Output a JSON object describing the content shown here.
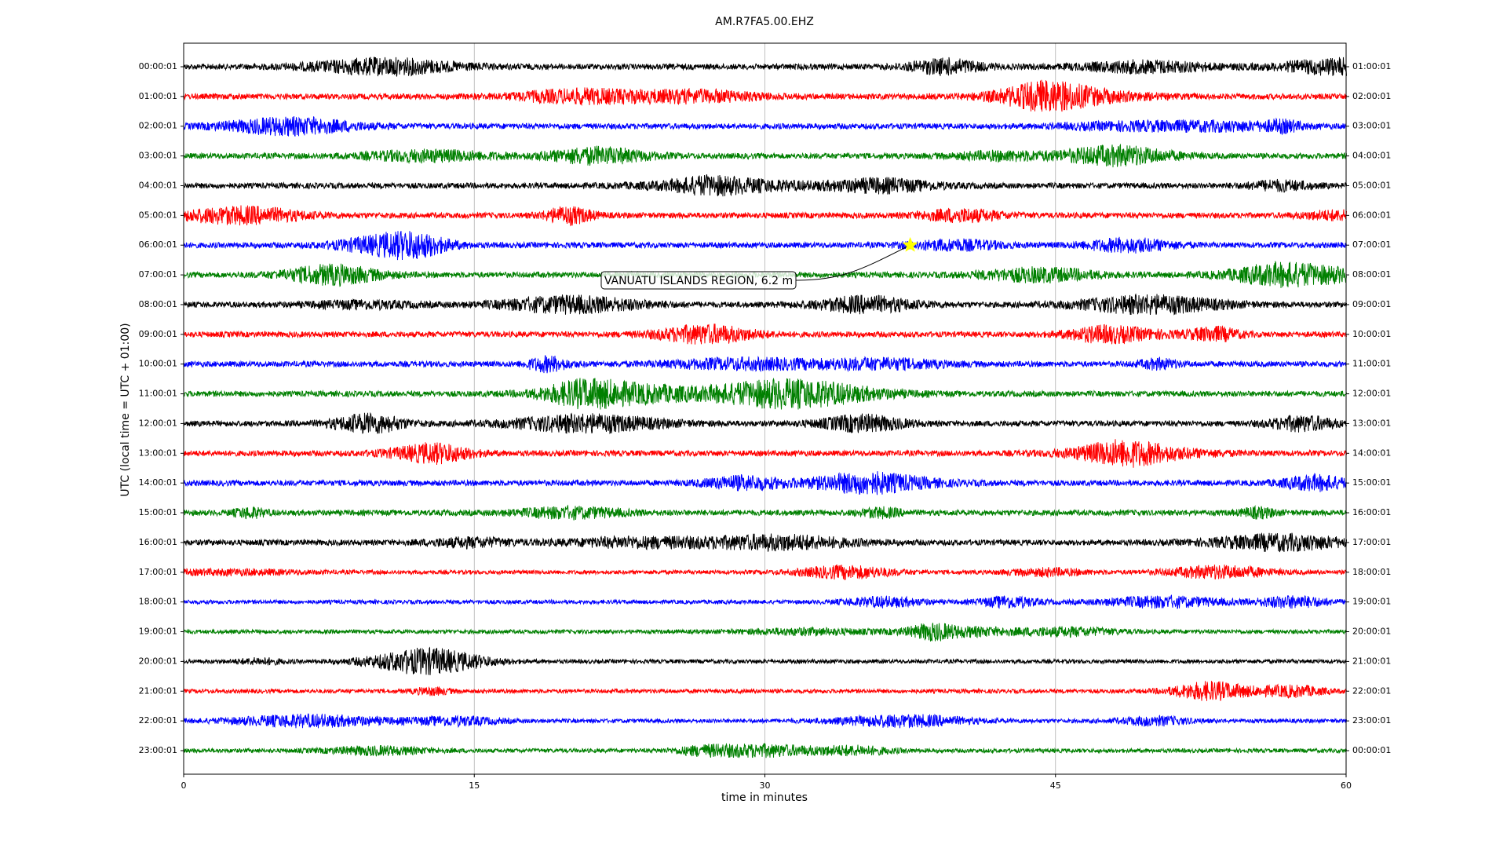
{
  "chart_data": {
    "type": "dayplot",
    "title": "AM.R7FA5.00.EHZ",
    "xlabel": "time in minutes",
    "ylabel": "UTC (local time = UTC + 01:00)",
    "xlim": [
      0,
      60
    ],
    "xticks": [
      0,
      15,
      30,
      45,
      60
    ],
    "grid": true,
    "series": [
      {
        "name": "00:00:01",
        "right_label": "01:00:01",
        "color": "#000000"
      },
      {
        "name": "01:00:01",
        "right_label": "02:00:01",
        "color": "#ff0000"
      },
      {
        "name": "02:00:01",
        "right_label": "03:00:01",
        "color": "#0000ff"
      },
      {
        "name": "03:00:01",
        "right_label": "04:00:01",
        "color": "#008000"
      },
      {
        "name": "04:00:01",
        "right_label": "05:00:01",
        "color": "#000000"
      },
      {
        "name": "05:00:01",
        "right_label": "06:00:01",
        "color": "#ff0000"
      },
      {
        "name": "06:00:01",
        "right_label": "07:00:01",
        "color": "#0000ff"
      },
      {
        "name": "07:00:01",
        "right_label": "08:00:01",
        "color": "#008000"
      },
      {
        "name": "08:00:01",
        "right_label": "09:00:01",
        "color": "#000000"
      },
      {
        "name": "09:00:01",
        "right_label": "10:00:01",
        "color": "#ff0000"
      },
      {
        "name": "10:00:01",
        "right_label": "11:00:01",
        "color": "#0000ff"
      },
      {
        "name": "11:00:01",
        "right_label": "12:00:01",
        "color": "#008000"
      },
      {
        "name": "12:00:01",
        "right_label": "13:00:01",
        "color": "#000000"
      },
      {
        "name": "13:00:01",
        "right_label": "14:00:01",
        "color": "#ff0000"
      },
      {
        "name": "14:00:01",
        "right_label": "15:00:01",
        "color": "#0000ff"
      },
      {
        "name": "15:00:01",
        "right_label": "16:00:01",
        "color": "#008000"
      },
      {
        "name": "16:00:01",
        "right_label": "17:00:01",
        "color": "#000000"
      },
      {
        "name": "17:00:01",
        "right_label": "18:00:01",
        "color": "#ff0000"
      },
      {
        "name": "18:00:01",
        "right_label": "19:00:01",
        "color": "#0000ff"
      },
      {
        "name": "19:00:01",
        "right_label": "20:00:01",
        "color": "#008000"
      },
      {
        "name": "20:00:01",
        "right_label": "21:00:01",
        "color": "#000000"
      },
      {
        "name": "21:00:01",
        "right_label": "22:00:01",
        "color": "#ff0000"
      },
      {
        "name": "22:00:01",
        "right_label": "23:00:01",
        "color": "#0000ff"
      },
      {
        "name": "23:00:01",
        "right_label": "00:00:01",
        "color": "#008000"
      }
    ],
    "annotation": {
      "text": "VANUATU ISLANDS REGION, 6.2 m",
      "x": 37.5,
      "row": 6,
      "marker_color": "#ffff00"
    }
  }
}
